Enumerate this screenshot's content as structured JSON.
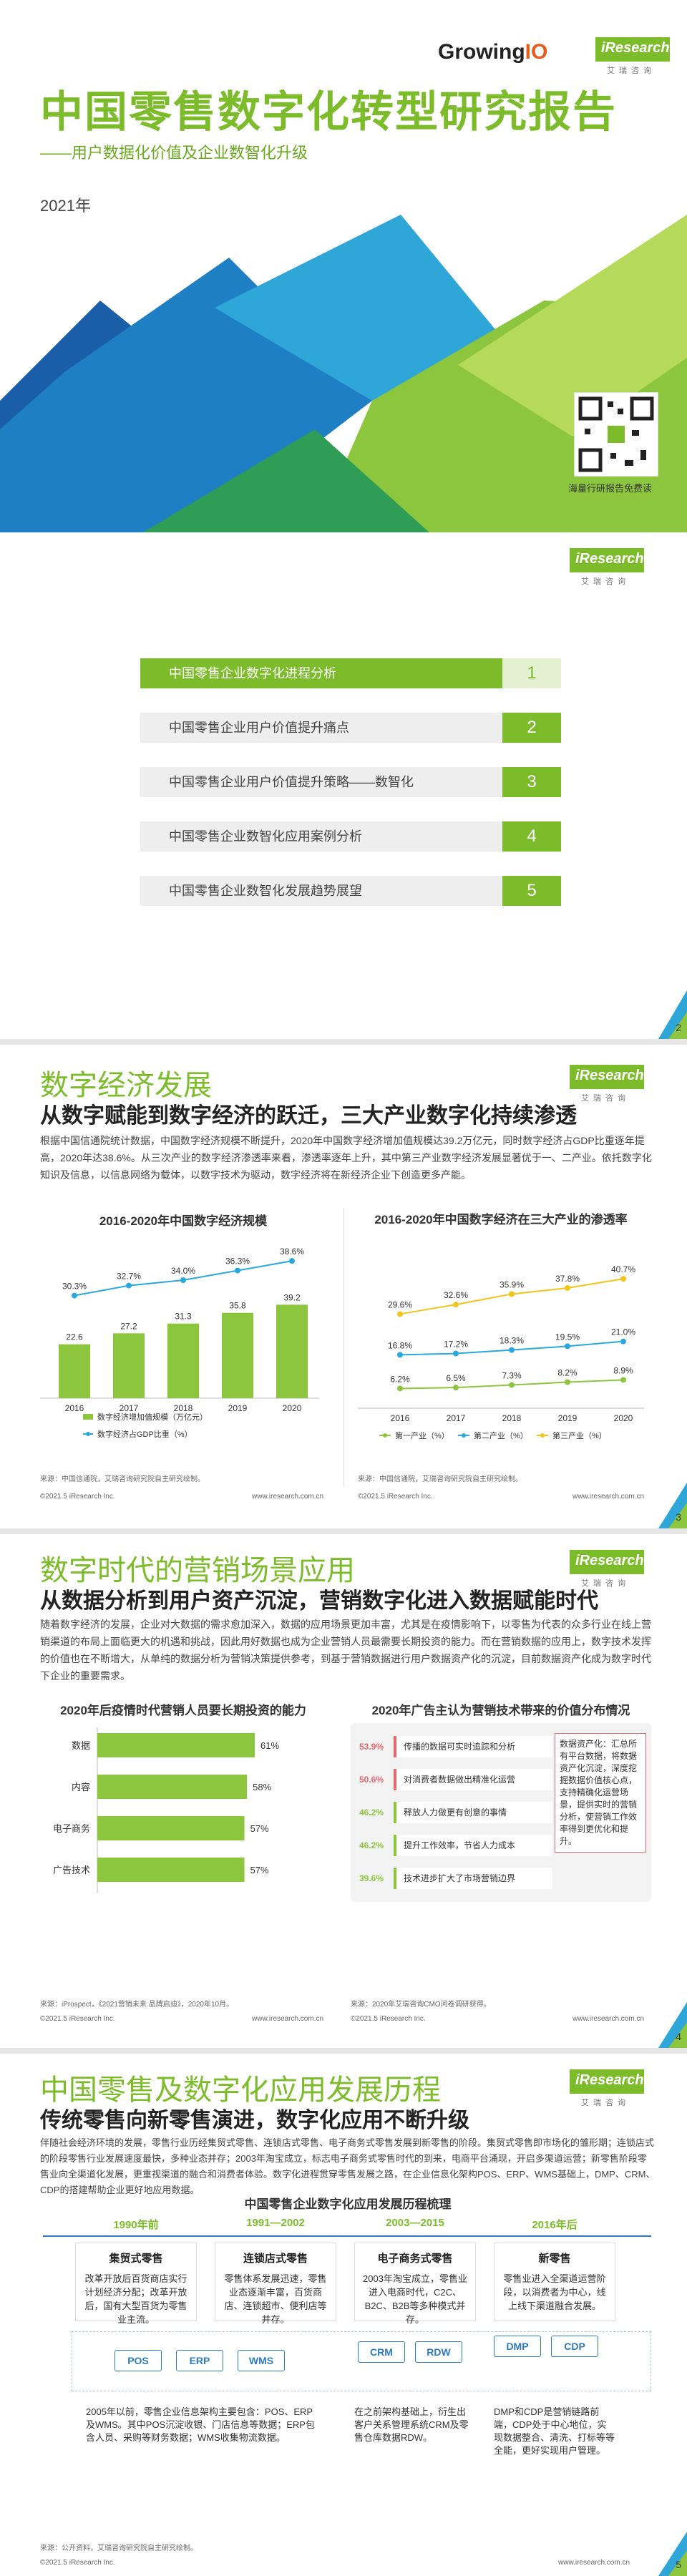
{
  "cover": {
    "brand1_a": "Growing",
    "brand1_b": "IO",
    "brand2": "iResearch",
    "brand2_sub": "艾瑞咨询",
    "title": "中国零售数字化转型研究报告",
    "subtitle": "——用户数据化价值及企业数智化升级",
    "year": "2021年",
    "qr_caption": "海量行研报告免费读"
  },
  "toc": {
    "items": [
      {
        "label": "中国零售企业数字化进程分析",
        "num": "1"
      },
      {
        "label": "中国零售企业用户价值提升痛点",
        "num": "2"
      },
      {
        "label": "中国零售企业用户价值提升策略——数智化",
        "num": "3"
      },
      {
        "label": "中国零售企业数智化应用案例分析",
        "num": "4"
      },
      {
        "label": "中国零售企业数智化发展趋势展望",
        "num": "5"
      }
    ],
    "page": "2"
  },
  "digital": {
    "title": "数字经济发展",
    "subtitle": "从数字赋能到数字经济的跃迁，三大产业数字化持续渗透",
    "para": "根据中国信通院统计数据，中国数字经济规模不断提升，2020年中国数字经济增加值规模达39.2万亿元，同时数字经济占GDP比重逐年提高，2020年达38.6%。从三次产业的数字经济渗透率来看，渗透率逐年上升，其中第三产业数字经济发展显著优于一、二产业。依托数字化知识及信息，以信息网络为载体，以数字技术为驱动，数字经济将在新经济企业下创造更多产能。",
    "source_left": "来源：中国信通院，艾瑞咨询研究院自主研究绘制。",
    "source_right": "来源：中国信通院，艾瑞咨询研究院自主研究绘制。",
    "foot_left": "©2021.5 iResearch Inc.",
    "foot_right": "www.iresearch.com.cn",
    "foot_left2": "©2021.5 iResearch Inc.",
    "foot_right2": "www.iresearch.com.cn",
    "page": "3"
  },
  "chart_left": {
    "type": "bar",
    "title": "2016-2020年中国数字经济规模",
    "categories": [
      "2016",
      "2017",
      "2018",
      "2019",
      "2020"
    ],
    "series": [
      {
        "name": "数字经济增加值规模（万亿元）",
        "values": [
          22.6,
          27.2,
          31.3,
          35.8,
          39.2
        ]
      },
      {
        "name": "数字经济占GDP比重（%）",
        "values": [
          30.3,
          32.7,
          34.0,
          36.3,
          38.6
        ]
      }
    ],
    "pct_labels": [
      "30.3%",
      "32.7%",
      "34.0%",
      "36.3%",
      "38.6%"
    ],
    "colors": {
      "bar": "#8cc63f",
      "line": "#29a8e0"
    }
  },
  "chart_right": {
    "type": "line",
    "title": "2016-2020年中国数字经济在三大产业的渗透率",
    "categories": [
      "2016",
      "2017",
      "2018",
      "2019",
      "2020"
    ],
    "series": [
      {
        "name": "第一产业（%）",
        "values": [
          6.2,
          6.5,
          7.3,
          8.2,
          8.9
        ]
      },
      {
        "name": "第二产业（%）",
        "values": [
          16.8,
          17.2,
          18.3,
          19.5,
          21.0
        ]
      },
      {
        "name": "第三产业（%）",
        "values": [
          29.6,
          32.6,
          35.9,
          37.8,
          40.7
        ]
      }
    ],
    "labels": [
      [
        "6.2%",
        "6.5%",
        "7.3%",
        "8.2%",
        "8.9%"
      ],
      [
        "16.8%",
        "17.2%",
        "18.3%",
        "19.5%",
        "21.0%"
      ],
      [
        "29.6%",
        "32.6%",
        "35.9%",
        "37.8%",
        "40.7%"
      ]
    ],
    "colors": [
      "#8cc63f",
      "#29a8e0",
      "#f0c419"
    ]
  },
  "marketing": {
    "title": "数字时代的营销场景应用",
    "subtitle": "从数据分析到用户资产沉淀，营销数字化进入数据赋能时代",
    "para": "随着数字经济的发展，企业对大数据的需求愈加深入，数据的应用场景更加丰富，尤其是在疫情影响下，以零售为代表的众多行业在线上营销渠道的布局上面临更大的机遇和挑战，因此用好数据也成为企业营销人员最需要长期投资的能力。而在营销数据的应用上，数字技术发挥的价值也在不断增大，从单纯的数据分析为营销决策提供参考，到基于营销数据进行用户数据资产化的沉淀，目前数据资产化成为数字时代下企业的重要需求。",
    "left_title": "2020年后疫情时代营销人员要长期投资的能力",
    "left_items": [
      {
        "label": "数据",
        "value": 61,
        "text": "61%"
      },
      {
        "label": "内容",
        "value": 58,
        "text": "58%"
      },
      {
        "label": "电子商务",
        "value": 57,
        "text": "57%"
      },
      {
        "label": "广告技术",
        "value": 57,
        "text": "57%"
      }
    ],
    "right_title": "2020年广告主认为营销技术带来的价值分布情况",
    "right_items": [
      {
        "pct": "53.9%",
        "text": "传播的数据可实时追踪和分析"
      },
      {
        "pct": "50.6%",
        "text": "对消费者数据做出精准化运营"
      },
      {
        "pct": "46.2%",
        "text": "释放人力做更有创意的事情"
      },
      {
        "pct": "46.2%",
        "text": "提升工作效率，节省人力成本"
      },
      {
        "pct": "39.6%",
        "text": "技术进步扩大了市场营销边界"
      }
    ],
    "callout": "数据资产化：汇总所有平台数据，将数据资产化沉淀，深度挖掘数据价值核心点，支持精确化运营场景，提供实时的营销分析，使营销工作效率得到更优化和提升。",
    "source_left": "来源：iProspect，《2021营销未来 品牌启迪》，2020年10月。",
    "source_right": "来源：2020年艾瑞咨询CMO问卷调研获得。",
    "foot_left": "©2021.5 iResearch Inc.",
    "foot_right": "www.iresearch.com.cn",
    "foot_left2": "©2021.5 iResearch Inc.",
    "foot_right2": "www.iresearch.com.cn",
    "page": "4"
  },
  "history": {
    "title": "中国零售及数字化应用发展历程",
    "subtitle": "传统零售向新零售演进，数字化应用不断升级",
    "para": "伴随社会经济环境的发展，零售行业历经集贸式零售、连锁店式零售、电子商务式零售发展到新零售的阶段。集贸式零售即市场化的雏形期；连锁店式的阶段零售行业发展速度最快，多种业态并存；2003年淘宝成立，标志电子商务式零售时代的到来，电商平台涌现，开启多渠道运营；新零售阶段零售业向全渠道化发展，更重视渠道的融合和消费者体验。数字化进程贯穿零售发展之路，在企业信息化架构POS、ERP、WMS基础上，DMP、CRM、CDP的搭建帮助企业更好地应用数据。",
    "chart_title": "中国零售企业数字化应用发展历程梳理",
    "eras": [
      "1990年前",
      "1991—2002",
      "2003—2015",
      "2016年后"
    ],
    "stages": [
      {
        "name": "集贸式零售",
        "desc": "改革开放后百货商店实行计划经济分配；改革开放后，国有大型百货为零售业主流。"
      },
      {
        "name": "连锁店式零售",
        "desc": "零售体系发展迅速，零售业态逐渐丰富，百货商店、连锁超市、便利店等并存。"
      },
      {
        "name": "电子商务式零售",
        "desc": "2003年淘宝成立，零售业进入电商时代，C2C、B2C、B2B等多种模式并存。"
      },
      {
        "name": "新零售",
        "desc": "零售业进入全渠道运营阶段，以消费者为中心，线上线下渠道融合发展。"
      }
    ],
    "tags": [
      "POS",
      "ERP",
      "WMS",
      "CRM",
      "RDW",
      "DMP",
      "CDP"
    ],
    "notes": [
      "2005年以前，零售企业信息架构主要包含：POS、ERP及WMS。其中POS沉淀收银、门店信息等数据；ERP包含人员、采购等财务数据；WMS收集物流数据。",
      "在之前架构基础上，衍生出客户关系管理系统CRM及零售仓库数据RDW。",
      "DMP和CDP是营销链路前端，CDP处于中心地位，实现数据整合、清洗、打标等等全能，更好实现用户管理。"
    ],
    "source": "来源：公开资料，艾瑞咨询研究院自主研究绘制。",
    "foot_left": "©2021.5 iResearch Inc.",
    "foot_right": "www.iresearch.com.cn",
    "page": "5"
  }
}
